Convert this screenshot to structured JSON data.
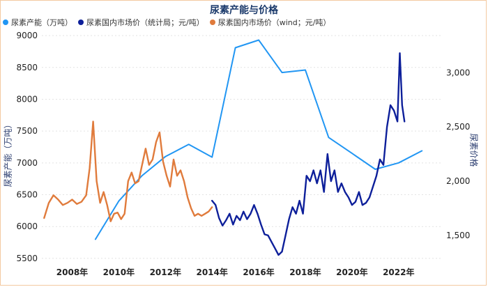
{
  "chart_data": {
    "type": "line",
    "title": "尿素产能与价格",
    "legend": [
      {
        "name": "尿素产能（万吨）",
        "color": "#2196f3"
      },
      {
        "name": "尿素国内市场价（统计局；元/吨）",
        "color": "#0d1f9a"
      },
      {
        "name": "尿素国内市场价（wind；元/吨）",
        "color": "#e07b3c"
      }
    ],
    "ylabel_left": "尿素产能（万吨）",
    "ylabel_right": "尿素价格",
    "ylim_left": [
      5400,
      9100
    ],
    "yticks_left": [
      "5500",
      "6000",
      "6500",
      "7000",
      "7500",
      "8000",
      "8500",
      "9000"
    ],
    "ylim_right": [
      1230,
      3400
    ],
    "yticks_right": [
      "1,500",
      "2,000",
      "2,500",
      "3,000"
    ],
    "xlim": [
      2006.7,
      2023.8
    ],
    "xticks": [
      "2008年",
      "2010年",
      "2012年",
      "2014年",
      "2016年",
      "2018年",
      "2020年",
      "2022年"
    ],
    "series": [
      {
        "name": "尿素产能（万吨）",
        "axis": "left",
        "color": "#2196f3",
        "x": [
          2009.0,
          2010.0,
          2011.0,
          2012.0,
          2013.0,
          2014.0,
          2015.0,
          2016.0,
          2017.0,
          2018.0,
          2019.0,
          2020.0,
          2021.0,
          2022.0,
          2023.0
        ],
        "y": [
          5800,
          6400,
          6800,
          7100,
          7290,
          7090,
          8810,
          8930,
          8420,
          8460,
          7400,
          7150,
          6900,
          7000,
          7190
        ]
      },
      {
        "name": "尿素国内市场价（统计局；元/吨）",
        "axis": "right",
        "color": "#0d1f9a",
        "x": [
          2014.0,
          2014.15,
          2014.3,
          2014.45,
          2014.6,
          2014.75,
          2014.9,
          2015.05,
          2015.2,
          2015.35,
          2015.5,
          2015.65,
          2015.8,
          2015.95,
          2016.1,
          2016.25,
          2016.4,
          2016.55,
          2016.7,
          2016.85,
          2017.0,
          2017.15,
          2017.3,
          2017.45,
          2017.6,
          2017.75,
          2017.9,
          2018.05,
          2018.2,
          2018.35,
          2018.5,
          2018.65,
          2018.8,
          2018.95,
          2019.1,
          2019.25,
          2019.4,
          2019.55,
          2019.7,
          2019.85,
          2020.0,
          2020.15,
          2020.3,
          2020.45,
          2020.6,
          2020.75,
          2020.9,
          2021.05,
          2021.2,
          2021.35,
          2021.5,
          2021.65,
          2021.8,
          2021.95,
          2022.05,
          2022.15,
          2022.25
        ],
        "y": [
          1820,
          1780,
          1660,
          1590,
          1640,
          1700,
          1600,
          1680,
          1640,
          1720,
          1650,
          1700,
          1780,
          1700,
          1600,
          1510,
          1500,
          1440,
          1380,
          1320,
          1350,
          1500,
          1650,
          1760,
          1700,
          1820,
          1700,
          2050,
          2000,
          2100,
          1980,
          2100,
          1900,
          2250,
          2000,
          2100,
          1900,
          1980,
          1900,
          1850,
          1780,
          1810,
          1900,
          1780,
          1800,
          1850,
          1950,
          2050,
          2200,
          2150,
          2500,
          2700,
          2650,
          2550,
          3180,
          2700,
          2550
        ]
      },
      {
        "name": "尿素国内市场价（wind；元/吨）",
        "axis": "right",
        "color": "#e07b3c",
        "x": [
          2006.8,
          2007.0,
          2007.2,
          2007.4,
          2007.6,
          2007.8,
          2008.0,
          2008.2,
          2008.4,
          2008.6,
          2008.75,
          2008.9,
          2009.05,
          2009.2,
          2009.35,
          2009.5,
          2009.65,
          2009.8,
          2009.95,
          2010.1,
          2010.25,
          2010.4,
          2010.55,
          2010.7,
          2010.85,
          2011.0,
          2011.15,
          2011.3,
          2011.45,
          2011.6,
          2011.75,
          2011.9,
          2012.05,
          2012.2,
          2012.35,
          2012.5,
          2012.65,
          2012.8,
          2012.95,
          2013.1,
          2013.25,
          2013.4,
          2013.55,
          2013.7,
          2013.85,
          2014.0
        ],
        "y": [
          1660,
          1800,
          1870,
          1830,
          1780,
          1800,
          1830,
          1790,
          1810,
          1870,
          2120,
          2550,
          2000,
          1800,
          1900,
          1780,
          1630,
          1700,
          1710,
          1650,
          1700,
          2000,
          2080,
          1980,
          2000,
          2150,
          2300,
          2150,
          2200,
          2360,
          2450,
          2180,
          2050,
          1950,
          2200,
          2050,
          2100,
          2000,
          1850,
          1750,
          1680,
          1700,
          1680,
          1700,
          1720,
          1760
        ]
      }
    ]
  }
}
